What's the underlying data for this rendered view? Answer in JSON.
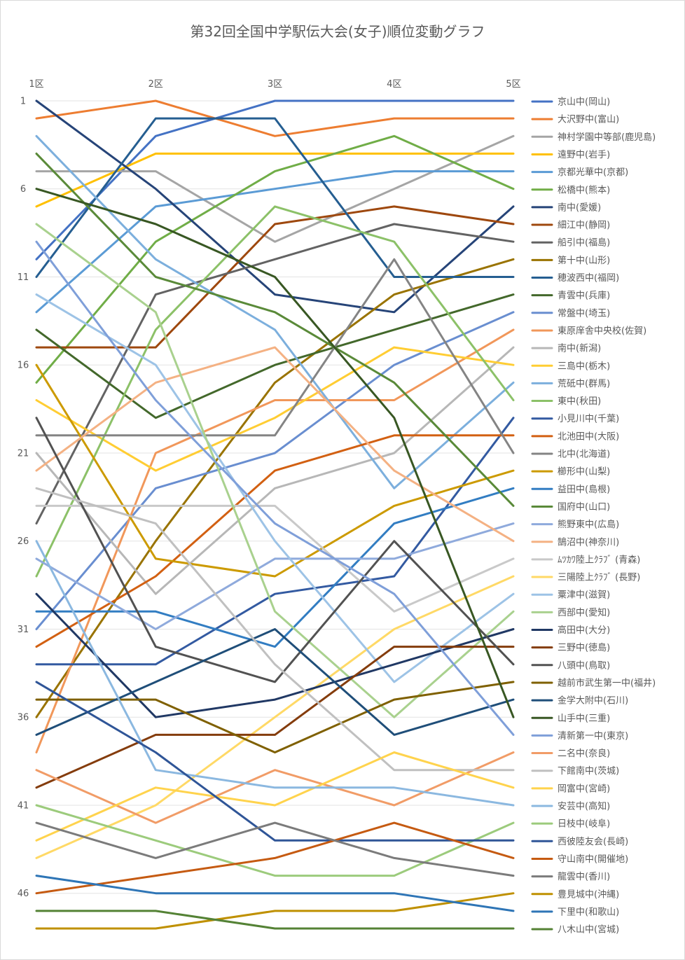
{
  "chart_data": {
    "type": "line",
    "title": "第32回全国中学駅伝大会(女子)順位変動グラフ",
    "x": [
      "1区",
      "2区",
      "3区",
      "4区",
      "5区"
    ],
    "yticks": [
      "1",
      "6",
      "11",
      "16",
      "21",
      "26",
      "31",
      "36",
      "41",
      "46"
    ],
    "ylim": [
      1,
      48
    ],
    "y_inverted": true,
    "grid": true,
    "legend_position": "right",
    "series": [
      {
        "name": "京山中(岡山)",
        "color": "#4472C4",
        "values": [
          10,
          3,
          1,
          1,
          1
        ]
      },
      {
        "name": "大沢野中(富山)",
        "color": "#ED7D31",
        "values": [
          2,
          1,
          3,
          2,
          2
        ]
      },
      {
        "name": "神村学園中等部(鹿児島)",
        "color": "#A5A5A5",
        "values": [
          5,
          5,
          9,
          6,
          3
        ]
      },
      {
        "name": "遠野中(岩手)",
        "color": "#FFC000",
        "values": [
          7,
          4,
          4,
          4,
          4
        ]
      },
      {
        "name": "京都光華中(京都)",
        "color": "#5B9BD5",
        "values": [
          13,
          7,
          6,
          5,
          5
        ]
      },
      {
        "name": "松橋中(熊本)",
        "color": "#70AD47",
        "values": [
          17,
          9,
          5,
          3,
          6
        ]
      },
      {
        "name": "南中(愛媛)",
        "color": "#264478",
        "values": [
          1,
          6,
          12,
          13,
          7
        ]
      },
      {
        "name": "細江中(静岡)",
        "color": "#9E480E",
        "values": [
          15,
          15,
          8,
          7,
          8
        ]
      },
      {
        "name": "船引中(福島)",
        "color": "#636363",
        "values": [
          25,
          12,
          10,
          8,
          9
        ]
      },
      {
        "name": "第十中(山形)",
        "color": "#997300",
        "values": [
          36,
          26,
          17,
          12,
          10
        ]
      },
      {
        "name": "穂波西中(福岡)",
        "color": "#255E91",
        "values": [
          11,
          2,
          2,
          11,
          11
        ]
      },
      {
        "name": "青雲中(兵庫)",
        "color": "#43682B",
        "values": [
          14,
          19,
          16,
          14,
          12
        ]
      },
      {
        "name": "常盤中(埼玉)",
        "color": "#698ED0",
        "values": [
          31,
          23,
          21,
          16,
          13
        ]
      },
      {
        "name": "東原庠舎中央校(佐賀)",
        "color": "#F1975A",
        "values": [
          38,
          21,
          18,
          18,
          14
        ]
      },
      {
        "name": "南中(新潟)",
        "color": "#B7B7B7",
        "values": [
          21,
          29,
          23,
          21,
          15
        ]
      },
      {
        "name": "三島中(栃木)",
        "color": "#FFCD33",
        "values": [
          18,
          22,
          19,
          15,
          16
        ]
      },
      {
        "name": "荒砥中(群馬)",
        "color": "#7CAFDD",
        "values": [
          3,
          10,
          14,
          23,
          17
        ]
      },
      {
        "name": "東中(秋田)",
        "color": "#8CC168",
        "values": [
          28,
          14,
          7,
          9,
          18
        ]
      },
      {
        "name": "小見川中(千葉)",
        "color": "#335AA1",
        "values": [
          33,
          33,
          29,
          28,
          19
        ]
      },
      {
        "name": "北池田中(大阪)",
        "color": "#D26012",
        "values": [
          32,
          28,
          22,
          20,
          20
        ]
      },
      {
        "name": "北中(北海道)",
        "color": "#848484",
        "values": [
          20,
          20,
          20,
          10,
          21
        ]
      },
      {
        "name": "櫛形中(山梨)",
        "color": "#CC9A00",
        "values": [
          16,
          27,
          28,
          24,
          22
        ]
      },
      {
        "name": "益田中(島根)",
        "color": "#327DC2",
        "values": [
          30,
          30,
          32,
          25,
          23
        ]
      },
      {
        "name": "国府中(山口)",
        "color": "#5A8A39",
        "values": [
          4,
          11,
          13,
          17,
          24
        ]
      },
      {
        "name": "熊野東中(広島)",
        "color": "#8FAADC",
        "values": [
          27,
          31,
          27,
          27,
          25
        ]
      },
      {
        "name": "鵠沼中(神奈川)",
        "color": "#F4B183",
        "values": [
          22,
          17,
          15,
          22,
          26
        ]
      },
      {
        "name": "ﾑﾂｶﾜ陸上ｸﾗﾌﾞ (青森)",
        "color": "#C9C9C9",
        "values": [
          24,
          24,
          24,
          30,
          27
        ]
      },
      {
        "name": "三陽陸上ｸﾗﾌﾞ (長野)",
        "color": "#FFD966",
        "values": [
          44,
          41,
          36,
          31,
          28
        ]
      },
      {
        "name": "粟津中(滋賀)",
        "color": "#9DC3E6",
        "values": [
          12,
          16,
          26,
          34,
          29
        ]
      },
      {
        "name": "西部中(愛知)",
        "color": "#A9D18E",
        "values": [
          8,
          13,
          30,
          36,
          30
        ]
      },
      {
        "name": "高田中(大分)",
        "color": "#203864",
        "values": [
          29,
          36,
          35,
          33,
          31
        ]
      },
      {
        "name": "三野中(徳島)",
        "color": "#843C0C",
        "values": [
          40,
          37,
          37,
          32,
          32
        ]
      },
      {
        "name": "八頭中(鳥取)",
        "color": "#525252",
        "values": [
          19,
          32,
          34,
          26,
          33
        ]
      },
      {
        "name": "越前市武生第一中(福井)",
        "color": "#7F6000",
        "values": [
          35,
          35,
          38,
          35,
          34
        ]
      },
      {
        "name": "金学大附中(石川)",
        "color": "#1F4E79",
        "values": [
          37,
          34,
          31,
          37,
          35
        ]
      },
      {
        "name": "山手中(三重)",
        "color": "#385723",
        "values": [
          6,
          8,
          11,
          19,
          36
        ]
      },
      {
        "name": "清新第一中(東京)",
        "color": "#7F9FD9",
        "values": [
          9,
          18,
          25,
          29,
          37
        ]
      },
      {
        "name": "二名中(奈良)",
        "color": "#F19C67",
        "values": [
          39,
          42,
          39,
          41,
          38
        ]
      },
      {
        "name": "下館南中(茨城)",
        "color": "#C0C0C0",
        "values": [
          23,
          25,
          33,
          39,
          39
        ]
      },
      {
        "name": "岡富中(宮崎)",
        "color": "#FFD34D",
        "values": [
          43,
          40,
          41,
          38,
          40
        ]
      },
      {
        "name": "安芸中(高知)",
        "color": "#8BB8E0",
        "values": [
          26,
          39,
          40,
          40,
          41
        ]
      },
      {
        "name": "日枝中(岐阜)",
        "color": "#9CCB7C",
        "values": [
          41,
          43,
          45,
          45,
          42
        ]
      },
      {
        "name": "西彼陸友会(長崎)",
        "color": "#2F5597",
        "values": [
          34,
          38,
          43,
          43,
          43
        ]
      },
      {
        "name": "守山南中(開催地)",
        "color": "#C55A11",
        "values": [
          46,
          45,
          44,
          42,
          44
        ]
      },
      {
        "name": "龍雲中(香川)",
        "color": "#7B7B7B",
        "values": [
          42,
          44,
          42,
          44,
          45
        ]
      },
      {
        "name": "豊見城中(沖縄)",
        "color": "#BF9000",
        "values": [
          48,
          48,
          47,
          47,
          46
        ]
      },
      {
        "name": "下里中(和歌山)",
        "color": "#2E75B6",
        "values": [
          45,
          46,
          46,
          46,
          47
        ]
      },
      {
        "name": "八木山中(宮城)",
        "color": "#548235",
        "values": [
          47,
          47,
          48,
          48,
          48
        ]
      }
    ]
  }
}
